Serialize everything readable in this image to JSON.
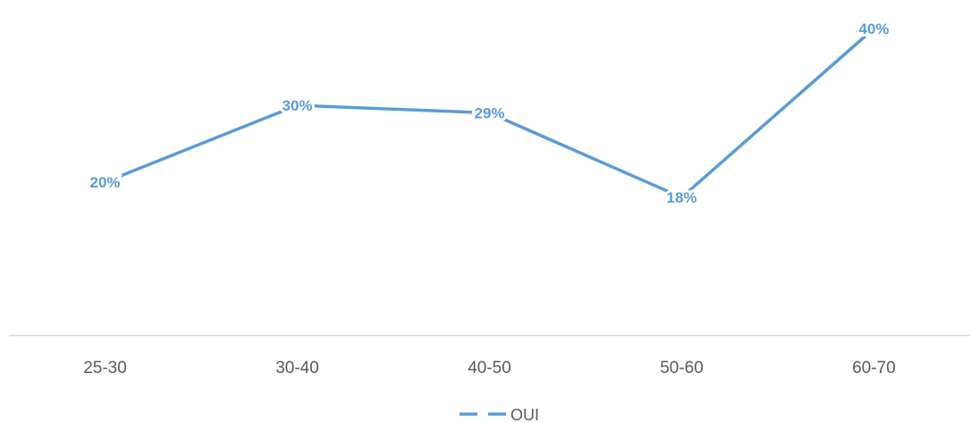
{
  "chart_data": {
    "type": "line",
    "title": "",
    "xlabel": "",
    "ylabel": "",
    "categories": [
      "25-30",
      "30-40",
      "40-50",
      "50-60",
      "60-70"
    ],
    "series": [
      {
        "name": "OUI",
        "values": [
          0.2,
          0.3,
          0.29,
          0.18,
          0.4
        ],
        "labels": [
          "20%",
          "30%",
          "29%",
          "18%",
          "40%"
        ],
        "color": "#5B9BD5"
      }
    ],
    "ylim": [
      0,
      0.42
    ],
    "grid": false,
    "legend": "bottom",
    "axis_color": "#D9D9D9"
  }
}
